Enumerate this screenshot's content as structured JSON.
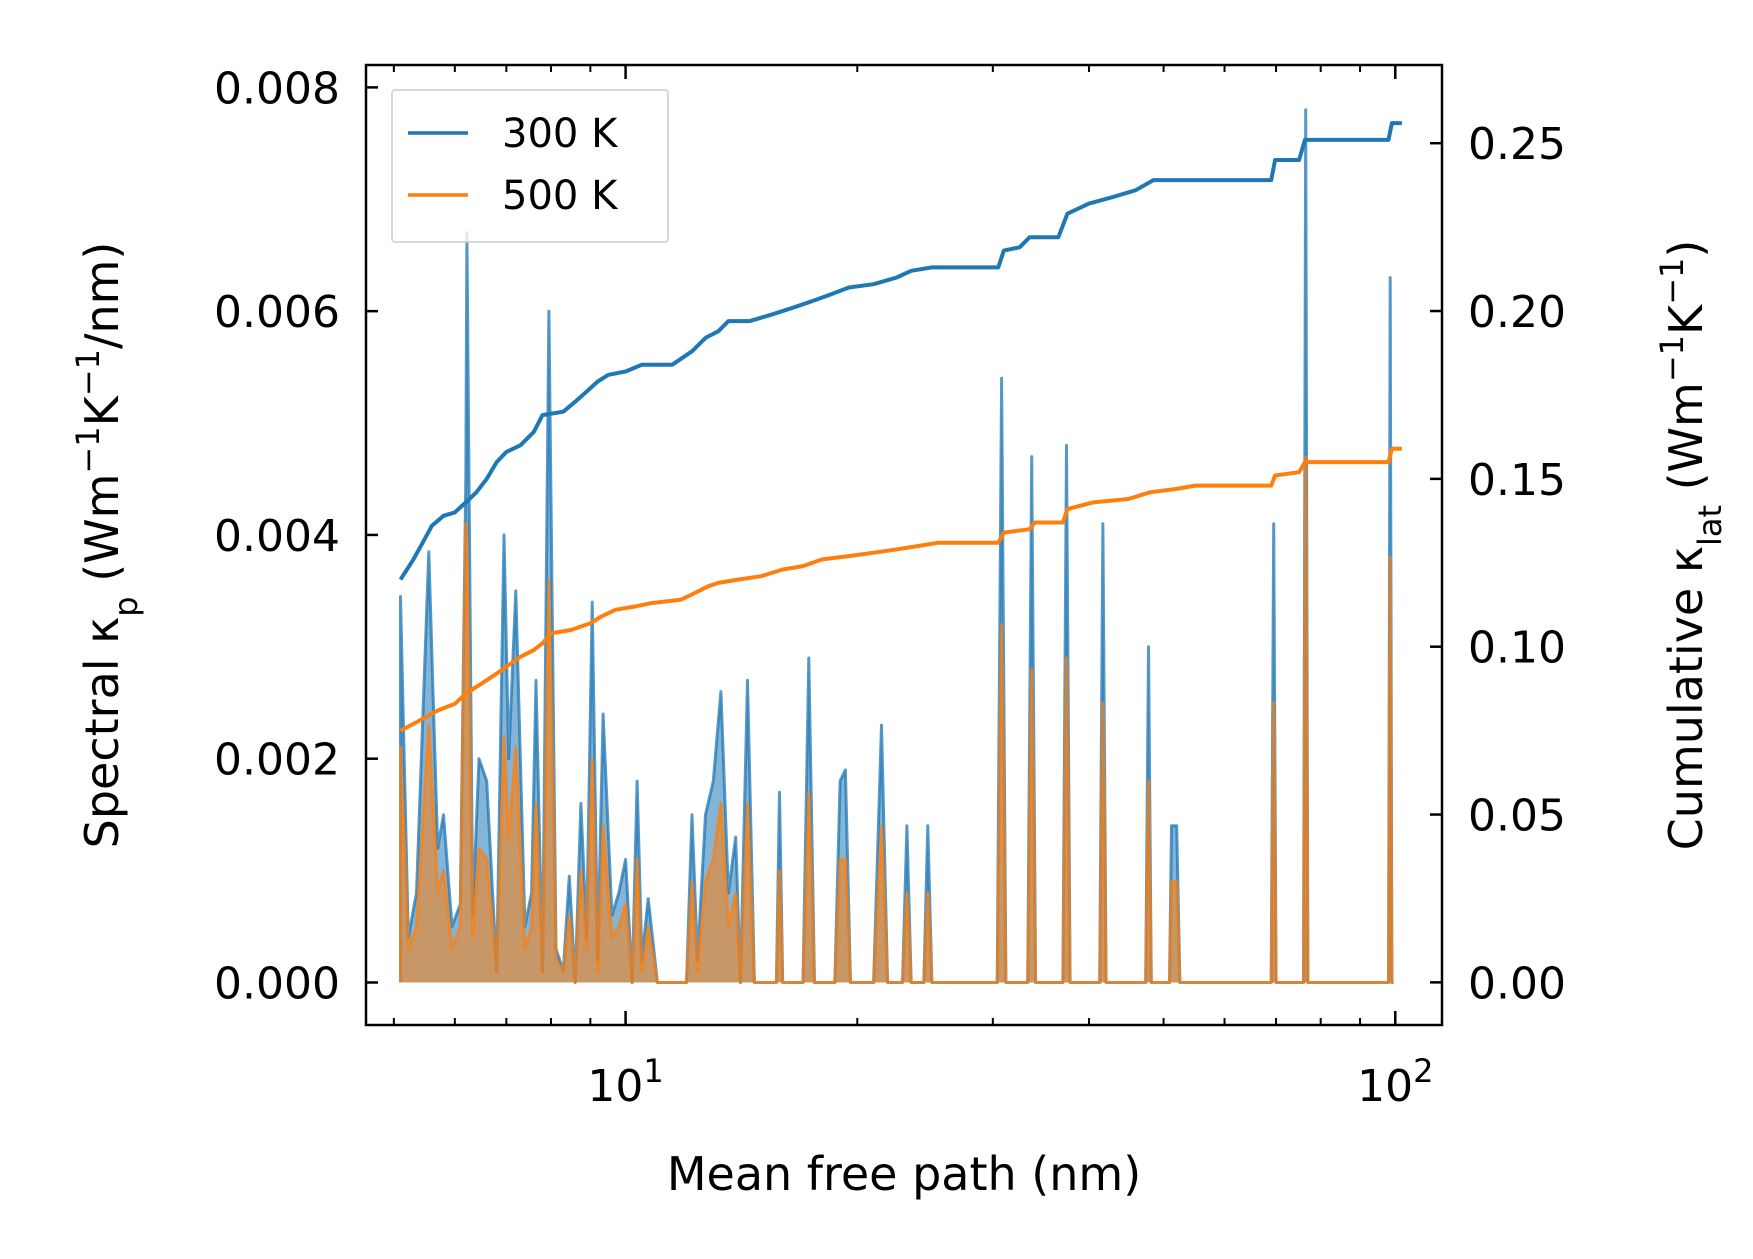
{
  "chart_data": {
    "type": "line",
    "xscale": "log",
    "xlabel": "Mean free path (nm)",
    "ylabel_left": {
      "main": "Spectral κ",
      "sub": "p",
      "unit_open": " (Wm",
      "unit_sup1": "−1",
      "unit_mid": "K",
      "unit_sup2": "−1",
      "unit_close": "/nm)"
    },
    "ylabel_right": {
      "main": "Cumulative κ",
      "sub": "lat",
      "unit_open": " (Wm",
      "unit_sup1": "−1",
      "unit_mid": "K",
      "unit_sup2": "−1",
      "unit_close": ")"
    },
    "xlim": [
      4.6,
      115
    ],
    "ylim_left": [
      -0.00038,
      0.0082
    ],
    "ylim_right": [
      -0.0127,
      0.2733
    ],
    "x_ticks": [
      {
        "value": 10,
        "base": "10",
        "exp": "1"
      },
      {
        "value": 100,
        "base": "10",
        "exp": "2"
      }
    ],
    "y_ticks_left": [
      "0.000",
      "0.002",
      "0.004",
      "0.006",
      "0.008"
    ],
    "y_ticks_right": [
      "0.00",
      "0.05",
      "0.10",
      "0.15",
      "0.20",
      "0.25"
    ],
    "legend": {
      "location": "upper-left",
      "entries": [
        {
          "label": "300 K",
          "color": "#1f77b4"
        },
        {
          "label": "500 K",
          "color": "#ff7f0e"
        }
      ]
    },
    "series": [
      {
        "name": "300 K",
        "color": "#1f77b4",
        "spectral": [
          [
            5.1,
            0
          ],
          [
            5.1,
            0.00345
          ],
          [
            5.22,
            0.0004
          ],
          [
            5.35,
            0.0008
          ],
          [
            5.55,
            0.00385
          ],
          [
            5.7,
            0.0012
          ],
          [
            5.8,
            0.0015
          ],
          [
            5.95,
            0.0005
          ],
          [
            6.1,
            0.0007
          ],
          [
            6.2,
            0.0045
          ],
          [
            6.22,
            0.0067
          ],
          [
            6.33,
            0.0006
          ],
          [
            6.45,
            0.002
          ],
          [
            6.6,
            0.0018
          ],
          [
            6.8,
            0.0001
          ],
          [
            6.95,
            0.004
          ],
          [
            7.05,
            0.002
          ],
          [
            7.2,
            0.0035
          ],
          [
            7.4,
            0.0005
          ],
          [
            7.55,
            0.0008
          ],
          [
            7.65,
            0.0027
          ],
          [
            7.8,
            0.0001
          ],
          [
            7.95,
            0.006
          ],
          [
            8.12,
            0.0003
          ],
          [
            8.3,
            0.0001
          ],
          [
            8.45,
            0.00095
          ],
          [
            8.6,
            0
          ],
          [
            8.75,
            0.0016
          ],
          [
            8.9,
            0.0004
          ],
          [
            9.05,
            0.0034
          ],
          [
            9.2,
            0.0002
          ],
          [
            9.35,
            0.0024
          ],
          [
            9.6,
            0.0006
          ],
          [
            9.8,
            0.0008
          ],
          [
            10.0,
            0.0011
          ],
          [
            10.2,
            0
          ],
          [
            10.35,
            0.0018
          ],
          [
            10.5,
            0.0002
          ],
          [
            10.7,
            0.00075
          ],
          [
            11.0,
            0
          ],
          [
            12.0,
            0
          ],
          [
            12.2,
            0.0015
          ],
          [
            12.4,
            0.0002
          ],
          [
            12.7,
            0.0015
          ],
          [
            13.0,
            0.0018
          ],
          [
            13.3,
            0.0026
          ],
          [
            13.6,
            0.0008
          ],
          [
            13.9,
            0.0013
          ],
          [
            14.1,
            0
          ],
          [
            14.4,
            0.0027
          ],
          [
            14.7,
            0
          ],
          [
            15.7,
            0
          ],
          [
            15.85,
            0.0017
          ],
          [
            16.0,
            0
          ],
          [
            17.0,
            0
          ],
          [
            17.3,
            0.0029
          ],
          [
            17.6,
            0
          ],
          [
            18.7,
            0
          ],
          [
            19.0,
            0.0018
          ],
          [
            19.3,
            0.0019
          ],
          [
            19.6,
            0
          ],
          [
            21.0,
            0
          ],
          [
            21.5,
            0.0023
          ],
          [
            21.9,
            0
          ],
          [
            22.9,
            0
          ],
          [
            23.2,
            0.0014
          ],
          [
            23.5,
            0
          ],
          [
            24.4,
            0
          ],
          [
            24.7,
            0.0014
          ],
          [
            25.0,
            0
          ],
          [
            30.4,
            0
          ],
          [
            30.8,
            0.0054
          ],
          [
            31.2,
            0
          ],
          [
            33.3,
            0
          ],
          [
            33.7,
            0.0047
          ],
          [
            34.1,
            0
          ],
          [
            37.0,
            0
          ],
          [
            37.4,
            0.0048
          ],
          [
            37.8,
            0
          ],
          [
            41.3,
            0
          ],
          [
            41.7,
            0.0041
          ],
          [
            42.1,
            0
          ],
          [
            47.4,
            0
          ],
          [
            47.8,
            0.003
          ],
          [
            48.2,
            0
          ],
          [
            50.9,
            0
          ],
          [
            51.2,
            0.0014
          ],
          [
            52.0,
            0.0014
          ],
          [
            52.5,
            0
          ],
          [
            69.0,
            0
          ],
          [
            69.5,
            0.0041
          ],
          [
            70.0,
            0
          ],
          [
            76.0,
            0
          ],
          [
            76.5,
            0.0078
          ],
          [
            77.0,
            0
          ],
          [
            98.0,
            0
          ],
          [
            98.5,
            0.0063
          ],
          [
            99.0,
            0
          ],
          [
            99.5,
            0
          ]
        ],
        "cumulative": [
          [
            5.1,
            0.12
          ],
          [
            5.3,
            0.126
          ],
          [
            5.45,
            0.131
          ],
          [
            5.6,
            0.136
          ],
          [
            5.8,
            0.139
          ],
          [
            6.0,
            0.14
          ],
          [
            6.2,
            0.143
          ],
          [
            6.4,
            0.146
          ],
          [
            6.6,
            0.15
          ],
          [
            6.8,
            0.155
          ],
          [
            7.0,
            0.158
          ],
          [
            7.3,
            0.16
          ],
          [
            7.6,
            0.164
          ],
          [
            7.8,
            0.169
          ],
          [
            8.3,
            0.17
          ],
          [
            8.6,
            0.173
          ],
          [
            8.9,
            0.176
          ],
          [
            9.2,
            0.179
          ],
          [
            9.5,
            0.181
          ],
          [
            10.0,
            0.182
          ],
          [
            10.5,
            0.184
          ],
          [
            11.5,
            0.184
          ],
          [
            12.2,
            0.188
          ],
          [
            12.7,
            0.192
          ],
          [
            13.2,
            0.194
          ],
          [
            13.6,
            0.197
          ],
          [
            14.5,
            0.197
          ],
          [
            15.5,
            0.199
          ],
          [
            16.5,
            0.201
          ],
          [
            17.5,
            0.203
          ],
          [
            18.5,
            0.205
          ],
          [
            19.5,
            0.207
          ],
          [
            21.0,
            0.208
          ],
          [
            22.5,
            0.21
          ],
          [
            23.5,
            0.212
          ],
          [
            25.0,
            0.213
          ],
          [
            30.5,
            0.213
          ],
          [
            31.0,
            0.218
          ],
          [
            32.5,
            0.219
          ],
          [
            33.5,
            0.222
          ],
          [
            36.5,
            0.222
          ],
          [
            37.5,
            0.229
          ],
          [
            40.0,
            0.232
          ],
          [
            43.0,
            0.234
          ],
          [
            46.0,
            0.236
          ],
          [
            48.5,
            0.239
          ],
          [
            55.0,
            0.239
          ],
          [
            69.0,
            0.239
          ],
          [
            69.8,
            0.245
          ],
          [
            75.0,
            0.245
          ],
          [
            76.3,
            0.251
          ],
          [
            83.0,
            0.251
          ],
          [
            98.0,
            0.251
          ],
          [
            99.0,
            0.256
          ],
          [
            102.0,
            0.256
          ]
        ]
      },
      {
        "name": "500 K",
        "color": "#ff7f0e",
        "spectral": [
          [
            5.1,
            0
          ],
          [
            5.1,
            0.0021
          ],
          [
            5.22,
            0.0003
          ],
          [
            5.35,
            0.0005
          ],
          [
            5.55,
            0.0023
          ],
          [
            5.7,
            0.0008
          ],
          [
            5.8,
            0.001
          ],
          [
            5.95,
            0.0003
          ],
          [
            6.1,
            0.0005
          ],
          [
            6.2,
            0.0041
          ],
          [
            6.22,
            0.004
          ],
          [
            6.33,
            0.0004
          ],
          [
            6.45,
            0.0012
          ],
          [
            6.6,
            0.0011
          ],
          [
            6.8,
            0.0001
          ],
          [
            6.95,
            0.0022
          ],
          [
            7.05,
            0.0013
          ],
          [
            7.2,
            0.0021
          ],
          [
            7.4,
            0.0003
          ],
          [
            7.55,
            0.0005
          ],
          [
            7.65,
            0.0016
          ],
          [
            7.8,
            0.0001
          ],
          [
            7.95,
            0.0036
          ],
          [
            8.12,
            0.0002
          ],
          [
            8.3,
            0.0001
          ],
          [
            8.45,
            0.0006
          ],
          [
            8.6,
            0
          ],
          [
            8.75,
            0.001
          ],
          [
            8.9,
            0.0003
          ],
          [
            9.05,
            0.002
          ],
          [
            9.2,
            0.0001
          ],
          [
            9.35,
            0.0014
          ],
          [
            9.6,
            0.0004
          ],
          [
            9.8,
            0.0005
          ],
          [
            10.0,
            0.0007
          ],
          [
            10.2,
            0
          ],
          [
            10.35,
            0.0011
          ],
          [
            10.5,
            0.0001
          ],
          [
            10.7,
            0.0005
          ],
          [
            11.0,
            0
          ],
          [
            12.0,
            0
          ],
          [
            12.2,
            0.0009
          ],
          [
            12.4,
            0.0001
          ],
          [
            12.7,
            0.0009
          ],
          [
            13.0,
            0.0011
          ],
          [
            13.3,
            0.0016
          ],
          [
            13.6,
            0.0005
          ],
          [
            13.9,
            0.0008
          ],
          [
            14.1,
            0
          ],
          [
            14.4,
            0.0016
          ],
          [
            14.7,
            0
          ],
          [
            15.7,
            0
          ],
          [
            15.85,
            0.001
          ],
          [
            16.0,
            0
          ],
          [
            17.0,
            0
          ],
          [
            17.3,
            0.0017
          ],
          [
            17.6,
            0
          ],
          [
            18.7,
            0
          ],
          [
            19.0,
            0.0011
          ],
          [
            19.3,
            0.0011
          ],
          [
            19.6,
            0
          ],
          [
            21.0,
            0
          ],
          [
            21.5,
            0.0014
          ],
          [
            21.9,
            0
          ],
          [
            22.9,
            0
          ],
          [
            23.2,
            0.0008
          ],
          [
            23.5,
            0
          ],
          [
            24.4,
            0
          ],
          [
            24.7,
            0.0008
          ],
          [
            25.0,
            0
          ],
          [
            30.4,
            0
          ],
          [
            30.8,
            0.0032
          ],
          [
            31.2,
            0
          ],
          [
            33.3,
            0
          ],
          [
            33.7,
            0.0028
          ],
          [
            34.1,
            0
          ],
          [
            37.0,
            0
          ],
          [
            37.4,
            0.0029
          ],
          [
            37.8,
            0
          ],
          [
            41.3,
            0
          ],
          [
            41.7,
            0.0025
          ],
          [
            42.1,
            0
          ],
          [
            47.4,
            0
          ],
          [
            47.8,
            0.0018
          ],
          [
            48.2,
            0
          ],
          [
            50.9,
            0
          ],
          [
            51.2,
            0.0009
          ],
          [
            52.0,
            0.0009
          ],
          [
            52.5,
            0
          ],
          [
            69.0,
            0
          ],
          [
            69.5,
            0.0025
          ],
          [
            70.0,
            0
          ],
          [
            76.0,
            0
          ],
          [
            76.5,
            0.0047
          ],
          [
            77.0,
            0
          ],
          [
            98.0,
            0
          ],
          [
            98.5,
            0.0038
          ],
          [
            99.0,
            0
          ],
          [
            99.5,
            0
          ]
        ],
        "cumulative": [
          [
            5.1,
            0.075
          ],
          [
            5.3,
            0.077
          ],
          [
            5.5,
            0.079
          ],
          [
            5.7,
            0.081
          ],
          [
            6.0,
            0.083
          ],
          [
            6.2,
            0.086
          ],
          [
            6.5,
            0.089
          ],
          [
            6.8,
            0.092
          ],
          [
            7.0,
            0.094
          ],
          [
            7.3,
            0.097
          ],
          [
            7.6,
            0.099
          ],
          [
            7.8,
            0.101
          ],
          [
            8.0,
            0.104
          ],
          [
            8.5,
            0.105
          ],
          [
            9.0,
            0.107
          ],
          [
            9.3,
            0.109
          ],
          [
            9.7,
            0.111
          ],
          [
            10.3,
            0.112
          ],
          [
            10.8,
            0.113
          ],
          [
            11.8,
            0.114
          ],
          [
            12.3,
            0.116
          ],
          [
            12.8,
            0.118
          ],
          [
            13.2,
            0.119
          ],
          [
            14.0,
            0.12
          ],
          [
            15.0,
            0.121
          ],
          [
            16.0,
            0.123
          ],
          [
            17.0,
            0.124
          ],
          [
            18.0,
            0.126
          ],
          [
            19.5,
            0.127
          ],
          [
            21.0,
            0.128
          ],
          [
            22.5,
            0.129
          ],
          [
            24.0,
            0.13
          ],
          [
            25.5,
            0.131
          ],
          [
            30.5,
            0.131
          ],
          [
            31.0,
            0.134
          ],
          [
            33.5,
            0.135
          ],
          [
            34.0,
            0.137
          ],
          [
            37.0,
            0.137
          ],
          [
            37.5,
            0.141
          ],
          [
            40.5,
            0.143
          ],
          [
            45.0,
            0.144
          ],
          [
            48.0,
            0.146
          ],
          [
            52.0,
            0.147
          ],
          [
            55.0,
            0.148
          ],
          [
            69.0,
            0.148
          ],
          [
            69.8,
            0.151
          ],
          [
            75.0,
            0.152
          ],
          [
            76.3,
            0.155
          ],
          [
            98.0,
            0.155
          ],
          [
            99.0,
            0.159
          ],
          [
            102.0,
            0.159
          ]
        ]
      }
    ]
  }
}
